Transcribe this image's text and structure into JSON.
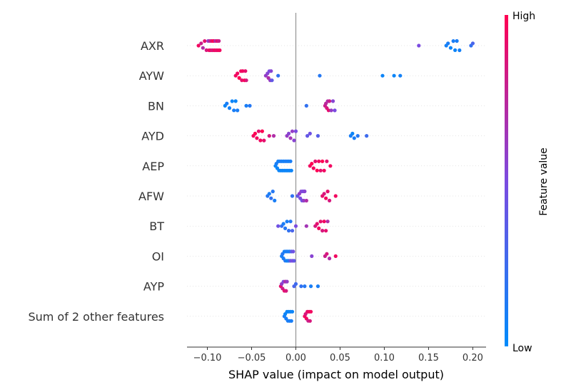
{
  "chart_data": {
    "type": "beeswarm",
    "xlabel": "SHAP value (impact on model output)",
    "xlim": [
      -0.123,
      0.215
    ],
    "x_ticks": [
      -0.1,
      -0.05,
      0.0,
      0.05,
      0.1,
      0.15,
      0.2
    ],
    "x_tick_labels": [
      "−0.10",
      "−0.05",
      "0.00",
      "0.05",
      "0.10",
      "0.15",
      "0.20"
    ],
    "colorbar": {
      "label": "Feature value",
      "high_label": "High",
      "low_label": "Low",
      "low_color": "#008bfb",
      "mid_color": "#7b4be0",
      "high_color": "#ff0052"
    },
    "features": [
      {
        "name": "AXR",
        "points": [
          [
            -0.11,
            0.95
          ],
          [
            -0.107,
            0.8
          ],
          [
            -0.105,
            0.7
          ],
          [
            -0.103,
            0.9
          ],
          [
            -0.101,
            0.85
          ],
          [
            -0.099,
            0.6
          ],
          [
            -0.098,
            0.95
          ],
          [
            -0.097,
            0.75
          ],
          [
            -0.096,
            0.9
          ],
          [
            -0.095,
            0.9
          ],
          [
            -0.094,
            0.85
          ],
          [
            -0.093,
            1.0
          ],
          [
            -0.092,
            0.95
          ],
          [
            -0.091,
            0.7
          ],
          [
            -0.09,
            0.9
          ],
          [
            -0.089,
            0.9
          ],
          [
            -0.088,
            0.95
          ],
          [
            -0.087,
            0.8
          ],
          [
            -0.086,
            0.95
          ],
          [
            0.139,
            0.5
          ],
          [
            0.17,
            0.08
          ],
          [
            0.172,
            0.1
          ],
          [
            0.175,
            0.05
          ],
          [
            0.178,
            0.1
          ],
          [
            0.18,
            0.05
          ],
          [
            0.182,
            0.1
          ],
          [
            0.185,
            0.08
          ],
          [
            0.198,
            0.2
          ],
          [
            0.2,
            0.3
          ]
        ]
      },
      {
        "name": "AYW",
        "points": [
          [
            -0.068,
            0.95
          ],
          [
            -0.066,
            0.95
          ],
          [
            -0.064,
            1.0
          ],
          [
            -0.062,
            0.95
          ],
          [
            -0.061,
            0.9
          ],
          [
            -0.06,
            0.95
          ],
          [
            -0.058,
            1.0
          ],
          [
            -0.057,
            0.9
          ],
          [
            -0.056,
            0.85
          ],
          [
            -0.034,
            0.6
          ],
          [
            -0.032,
            0.55
          ],
          [
            -0.031,
            0.7
          ],
          [
            -0.03,
            0.5
          ],
          [
            -0.029,
            0.6
          ],
          [
            -0.028,
            0.55
          ],
          [
            -0.027,
            0.4
          ],
          [
            -0.02,
            0.2
          ],
          [
            0.027,
            0.15
          ],
          [
            0.098,
            0.05
          ],
          [
            0.111,
            0.05
          ],
          [
            0.118,
            0.08
          ]
        ]
      },
      {
        "name": "BN",
        "points": [
          [
            -0.08,
            0.05
          ],
          [
            -0.078,
            0.1
          ],
          [
            -0.075,
            0.08
          ],
          [
            -0.072,
            0.05
          ],
          [
            -0.07,
            0.1
          ],
          [
            -0.068,
            0.05
          ],
          [
            -0.066,
            0.1
          ],
          [
            -0.056,
            0.1
          ],
          [
            -0.052,
            0.15
          ],
          [
            0.012,
            0.2
          ],
          [
            0.033,
            0.8
          ],
          [
            0.034,
            0.75
          ],
          [
            0.035,
            0.85
          ],
          [
            0.036,
            0.7
          ],
          [
            0.037,
            0.9
          ],
          [
            0.038,
            0.8
          ],
          [
            0.04,
            0.6
          ],
          [
            0.042,
            0.55
          ],
          [
            0.044,
            0.5
          ]
        ]
      },
      {
        "name": "AYD",
        "points": [
          [
            -0.048,
            0.95
          ],
          [
            -0.046,
            1.0
          ],
          [
            -0.044,
            0.95
          ],
          [
            -0.042,
            0.9
          ],
          [
            -0.04,
            0.95
          ],
          [
            -0.038,
            1.0
          ],
          [
            -0.036,
            0.9
          ],
          [
            -0.03,
            0.85
          ],
          [
            -0.025,
            0.7
          ],
          [
            -0.01,
            0.6
          ],
          [
            -0.008,
            0.55
          ],
          [
            -0.006,
            0.65
          ],
          [
            -0.004,
            0.6
          ],
          [
            -0.002,
            0.55
          ],
          [
            0.0,
            0.5
          ],
          [
            0.013,
            0.4
          ],
          [
            0.016,
            0.45
          ],
          [
            0.025,
            0.35
          ],
          [
            0.062,
            0.1
          ],
          [
            0.064,
            0.05
          ],
          [
            0.066,
            0.1
          ],
          [
            0.07,
            0.15
          ],
          [
            0.08,
            0.25
          ]
        ]
      },
      {
        "name": "AEP",
        "points": [
          [
            -0.023,
            0.05
          ],
          [
            -0.022,
            0.1
          ],
          [
            -0.021,
            0.05
          ],
          [
            -0.02,
            0.08
          ],
          [
            -0.019,
            0.05
          ],
          [
            -0.018,
            0.1
          ],
          [
            -0.017,
            0.05
          ],
          [
            -0.016,
            0.1
          ],
          [
            -0.015,
            0.05
          ],
          [
            -0.014,
            0.08
          ],
          [
            -0.013,
            0.05
          ],
          [
            -0.012,
            0.1
          ],
          [
            -0.011,
            0.05
          ],
          [
            -0.01,
            0.1
          ],
          [
            -0.009,
            0.05
          ],
          [
            -0.008,
            0.08
          ],
          [
            -0.007,
            0.05
          ],
          [
            -0.006,
            0.1
          ],
          [
            -0.005,
            0.05
          ],
          [
            0.016,
            0.95
          ],
          [
            0.018,
            1.0
          ],
          [
            0.02,
            0.95
          ],
          [
            0.022,
            0.9
          ],
          [
            0.024,
            1.0
          ],
          [
            0.026,
            0.95
          ],
          [
            0.028,
            0.9
          ],
          [
            0.03,
            1.0
          ],
          [
            0.032,
            0.95
          ],
          [
            0.035,
            0.9
          ],
          [
            0.039,
            0.95
          ]
        ]
      },
      {
        "name": "AFW",
        "points": [
          [
            -0.032,
            0.15
          ],
          [
            -0.03,
            0.1
          ],
          [
            -0.028,
            0.2
          ],
          [
            -0.026,
            0.15
          ],
          [
            -0.024,
            0.1
          ],
          [
            -0.004,
            0.2
          ],
          [
            0.002,
            0.4
          ],
          [
            0.004,
            0.6
          ],
          [
            0.005,
            0.5
          ],
          [
            0.006,
            0.55
          ],
          [
            0.007,
            0.45
          ],
          [
            0.008,
            0.5
          ],
          [
            0.009,
            0.6
          ],
          [
            0.01,
            0.55
          ],
          [
            0.012,
            0.7
          ],
          [
            0.03,
            0.9
          ],
          [
            0.032,
            0.85
          ],
          [
            0.034,
            0.95
          ],
          [
            0.036,
            0.9
          ],
          [
            0.038,
            0.85
          ],
          [
            0.045,
            0.95
          ]
        ]
      },
      {
        "name": "BT",
        "points": [
          [
            -0.02,
            0.45
          ],
          [
            -0.016,
            0.2
          ],
          [
            -0.014,
            0.1
          ],
          [
            -0.012,
            0.15
          ],
          [
            -0.01,
            0.1
          ],
          [
            -0.008,
            0.2
          ],
          [
            -0.006,
            0.15
          ],
          [
            -0.004,
            0.3
          ],
          [
            0.0,
            0.5
          ],
          [
            0.012,
            0.65
          ],
          [
            0.022,
            0.85
          ],
          [
            0.024,
            0.9
          ],
          [
            0.026,
            0.95
          ],
          [
            0.028,
            0.9
          ],
          [
            0.03,
            0.85
          ],
          [
            0.032,
            0.95
          ],
          [
            0.034,
            0.9
          ],
          [
            0.036,
            0.7
          ]
        ]
      },
      {
        "name": "OI",
        "points": [
          [
            -0.016,
            0.1
          ],
          [
            -0.015,
            0.15
          ],
          [
            -0.014,
            0.1
          ],
          [
            -0.013,
            0.08
          ],
          [
            -0.012,
            0.15
          ],
          [
            -0.011,
            0.1
          ],
          [
            -0.01,
            0.05
          ],
          [
            -0.009,
            0.1
          ],
          [
            -0.008,
            0.15
          ],
          [
            -0.007,
            0.1
          ],
          [
            -0.006,
            0.4
          ],
          [
            -0.005,
            0.35
          ],
          [
            -0.004,
            0.5
          ],
          [
            -0.003,
            0.45
          ],
          [
            -0.002,
            0.4
          ],
          [
            0.018,
            0.55
          ],
          [
            0.033,
            0.8
          ],
          [
            0.035,
            0.85
          ],
          [
            0.038,
            0.7
          ],
          [
            0.045,
            0.95
          ]
        ]
      },
      {
        "name": "AYP",
        "points": [
          [
            -0.017,
            0.9
          ],
          [
            -0.016,
            0.6
          ],
          [
            -0.015,
            0.8
          ],
          [
            -0.014,
            0.5
          ],
          [
            -0.013,
            0.9
          ],
          [
            -0.012,
            0.7
          ],
          [
            -0.011,
            0.85
          ],
          [
            -0.01,
            0.6
          ],
          [
            -0.002,
            0.3
          ],
          [
            0.0,
            0.25
          ],
          [
            0.006,
            0.2
          ],
          [
            0.01,
            0.15
          ],
          [
            0.017,
            0.1
          ],
          [
            0.025,
            0.1
          ]
        ]
      },
      {
        "name": "Sum of 2 other features",
        "points": [
          [
            -0.013,
            0.1
          ],
          [
            -0.012,
            0.05
          ],
          [
            -0.011,
            0.1
          ],
          [
            -0.01,
            0.05
          ],
          [
            -0.009,
            0.1
          ],
          [
            -0.008,
            0.05
          ],
          [
            -0.007,
            0.1
          ],
          [
            -0.006,
            0.05
          ],
          [
            -0.005,
            0.1
          ],
          [
            -0.004,
            0.05
          ],
          [
            0.01,
            0.95
          ],
          [
            0.011,
            0.85
          ],
          [
            0.012,
            0.95
          ],
          [
            0.013,
            0.9
          ],
          [
            0.014,
            0.8
          ],
          [
            0.015,
            0.95
          ],
          [
            0.016,
            0.85
          ],
          [
            0.017,
            0.95
          ]
        ]
      }
    ]
  }
}
